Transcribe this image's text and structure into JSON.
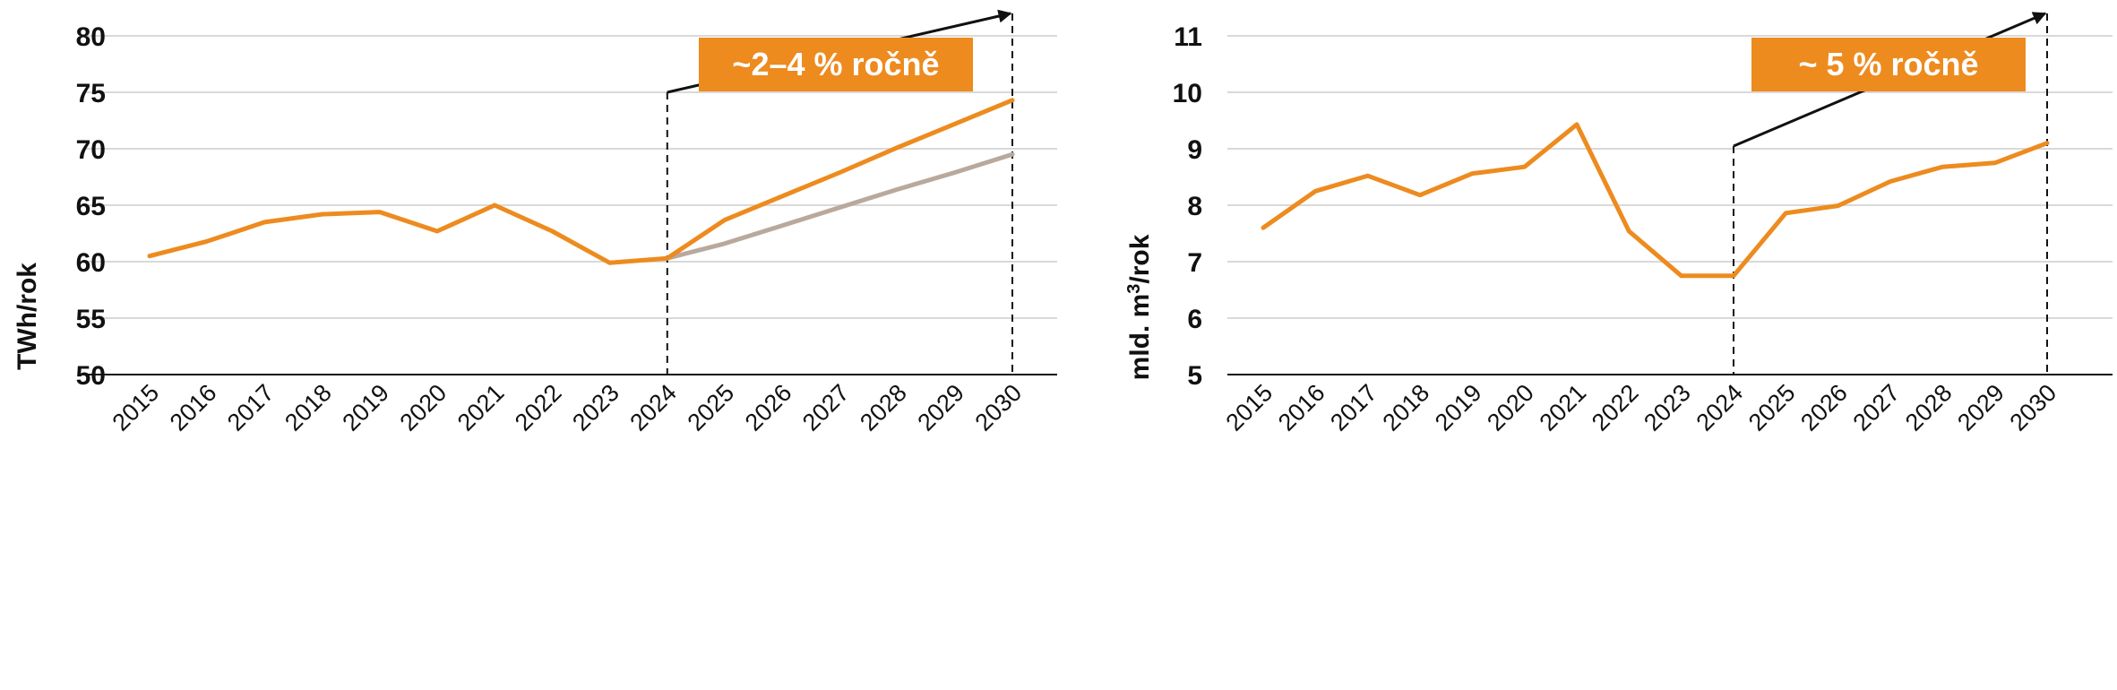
{
  "colors": {
    "orange": "#ED8B1F",
    "gray_series": "#B9A99C",
    "grid": "#D9D9D9",
    "axis": "#111111",
    "badge_bg": "#ED8B1F",
    "badge_text": "#FFFFFF"
  },
  "chart_data": [
    {
      "type": "line",
      "title": "",
      "xlabel": "",
      "ylabel": "TWh/rok",
      "ylim": [
        50,
        80
      ],
      "yticks": [
        50,
        55,
        60,
        65,
        70,
        75,
        80
      ],
      "grid": true,
      "categories": [
        "2015",
        "2016",
        "2017",
        "2018",
        "2019",
        "2020",
        "2021",
        "2022",
        "2023",
        "2024",
        "2025",
        "2026",
        "2027",
        "2028",
        "2029",
        "2030"
      ],
      "series": [
        {
          "values": [
            60.5,
            61.8,
            63.5,
            64.2,
            64.4,
            62.7,
            65.0,
            62.7,
            59.9,
            60.3,
            63.7,
            65.8,
            67.9,
            70.1,
            72.2,
            74.3
          ],
          "color": "orange"
        },
        {
          "values": [
            null,
            null,
            null,
            null,
            null,
            null,
            null,
            null,
            null,
            60.3,
            61.6,
            63.2,
            64.8,
            66.4,
            67.9,
            69.5
          ],
          "color": "gray_series"
        }
      ],
      "projection_start": "2024",
      "projection_end": "2030",
      "annotation": "~2–4 % ročně"
    },
    {
      "type": "line",
      "title": "",
      "xlabel": "",
      "ylabel_main": "mld. m",
      "ylabel_sup": "3",
      "ylabel_tail": "/rok",
      "ylim": [
        5,
        11
      ],
      "yticks": [
        5,
        6,
        7,
        8,
        9,
        10,
        11
      ],
      "grid": true,
      "categories": [
        "2015",
        "2016",
        "2017",
        "2018",
        "2019",
        "2020",
        "2021",
        "2022",
        "2023",
        "2024",
        "2025",
        "2026",
        "2027",
        "2028",
        "2029",
        "2030"
      ],
      "series": [
        {
          "values": [
            7.6,
            8.25,
            8.52,
            8.18,
            8.56,
            8.68,
            9.43,
            7.54,
            6.75,
            6.75,
            7.86,
            7.99,
            8.42,
            8.68,
            8.75,
            9.1
          ],
          "color": "orange"
        }
      ],
      "projection_start": "2024",
      "projection_end": "2030",
      "annotation": "~ 5 % ročně"
    }
  ]
}
